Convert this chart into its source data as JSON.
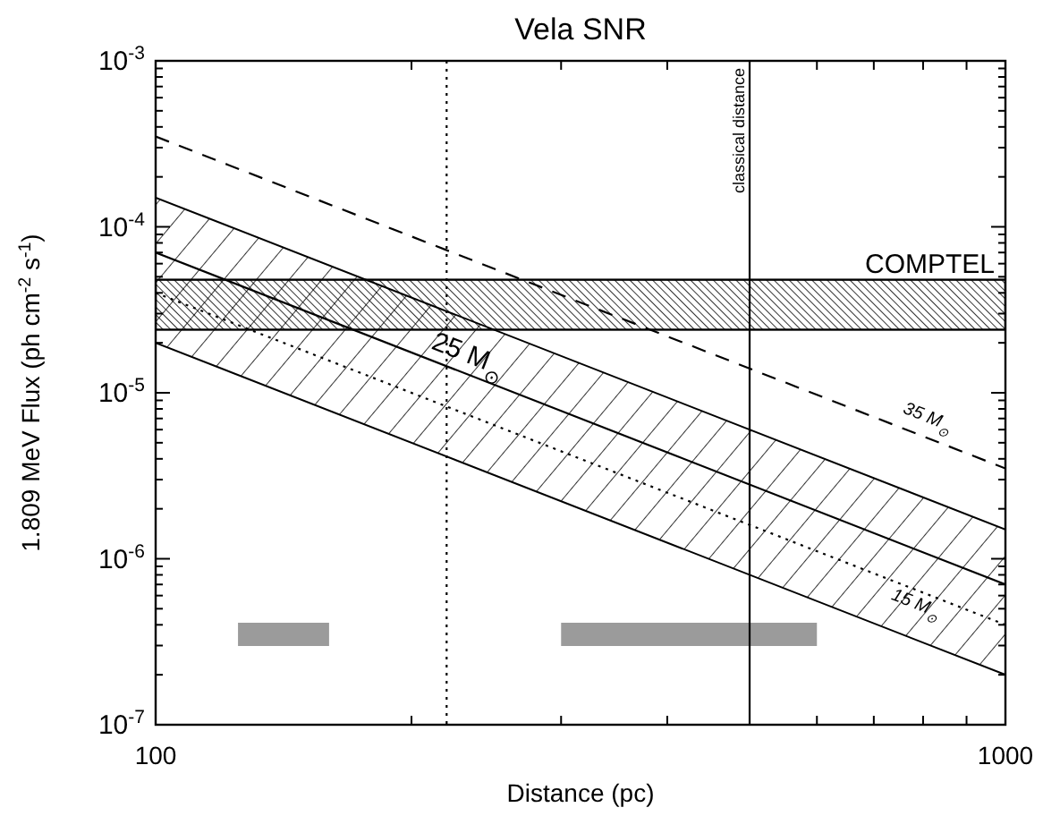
{
  "chart_data": {
    "type": "line",
    "title": "Vela SNR",
    "xlabel": "Distance (pc)",
    "ylabel": "1.809 MeV Flux (ph cm$^{-2}$ s$^{-1}$)",
    "log": "xy",
    "xlim": [
      100,
      1000
    ],
    "ylim": [
      1e-07,
      0.001
    ],
    "xticks": [
      100,
      {
        "value": 200,
        "label": null
      },
      {
        "value": 300,
        "label": null
      },
      {
        "value": 400,
        "label": null
      },
      {
        "value": 500,
        "label": null
      },
      {
        "value": 600,
        "label": null
      },
      {
        "value": 700,
        "label": null
      },
      {
        "value": 800,
        "label": null
      },
      {
        "value": 900,
        "label": null
      },
      1000
    ],
    "yticks": [
      {
        "value": 1e-07,
        "label": "10$^{-7}$"
      },
      {
        "value": 2e-07,
        "label": null
      },
      {
        "value": 3e-07,
        "label": null
      },
      {
        "value": 4e-07,
        "label": null
      },
      {
        "value": 5e-07,
        "label": null
      },
      {
        "value": 6e-07,
        "label": null
      },
      {
        "value": 7e-07,
        "label": null
      },
      {
        "value": 8e-07,
        "label": null
      },
      {
        "value": 9e-07,
        "label": null
      },
      {
        "value": 1e-06,
        "label": "10$^{-6}$"
      },
      {
        "value": 2e-06,
        "label": null
      },
      {
        "value": 3e-06,
        "label": null
      },
      {
        "value": 4e-06,
        "label": null
      },
      {
        "value": 5e-06,
        "label": null
      },
      {
        "value": 6e-06,
        "label": null
      },
      {
        "value": 7e-06,
        "label": null
      },
      {
        "value": 8e-06,
        "label": null
      },
      {
        "value": 9e-06,
        "label": null
      },
      {
        "value": 1e-05,
        "label": "10$^{-5}$"
      },
      {
        "value": 2e-05,
        "label": null
      },
      {
        "value": 3e-05,
        "label": null
      },
      {
        "value": 4e-05,
        "label": null
      },
      {
        "value": 5e-05,
        "label": null
      },
      {
        "value": 6e-05,
        "label": null
      },
      {
        "value": 7e-05,
        "label": null
      },
      {
        "value": 8e-05,
        "label": null
      },
      {
        "value": 9e-05,
        "label": null
      },
      {
        "value": 0.0001,
        "label": "10$^{-4}$"
      },
      {
        "value": 0.0002,
        "label": null
      },
      {
        "value": 0.0003,
        "label": null
      },
      {
        "value": 0.0004,
        "label": null
      },
      {
        "value": 0.0005,
        "label": null
      },
      {
        "value": 0.0006,
        "label": null
      },
      {
        "value": 0.0007,
        "label": null
      },
      {
        "value": 0.0008,
        "label": null
      },
      {
        "value": 0.0009,
        "label": null
      },
      {
        "value": 0.001,
        "label": "10$^{-3}$"
      }
    ],
    "series": [
      {
        "name": "35 M$_{⊙}$",
        "color": "#000000",
        "line_style": "dashed",
        "x": [
          100,
          1000
        ],
        "values": [
          0.00035,
          3.5e-06
        ]
      },
      {
        "name": "25 M$_{⊙}$",
        "color": "#000000",
        "line_style": "solid",
        "x": [
          100,
          1000
        ],
        "values": [
          7e-05,
          7e-07
        ],
        "lower": [
          2e-05,
          2e-07
        ],
        "upper": [
          0.00015,
          1.5e-06
        ]
      },
      {
        "name": "15 M$_{⊙}$",
        "color": "#000000",
        "line_style": "dotted",
        "x": [
          100,
          1000
        ],
        "values": [
          4e-05,
          4e-07
        ]
      },
      {
        "color": "#8a8a8a",
        "line_style": "solid",
        "x": [
          125,
          160
        ],
        "values": [
          3.5e-07,
          3.5e-07
        ]
      },
      {
        "color": "#8a8a8a",
        "line_style": "solid",
        "x": [
          300,
          600
        ],
        "values": [
          3.5e-07,
          3.5e-07
        ]
      }
    ],
    "bands": [
      {
        "axis": "y",
        "from": 2.4e-05,
        "to": 4.8e-05,
        "label": "COMPTEL",
        "color": "#000000"
      }
    ],
    "ref_lines": [
      {
        "axis": "x",
        "value": 500,
        "label": "classical distance",
        "color": "#000000",
        "line_style": "solid"
      },
      {
        "axis": "x",
        "value": 220,
        "label": null,
        "color": "#000000",
        "line_style": "dotted"
      }
    ]
  }
}
